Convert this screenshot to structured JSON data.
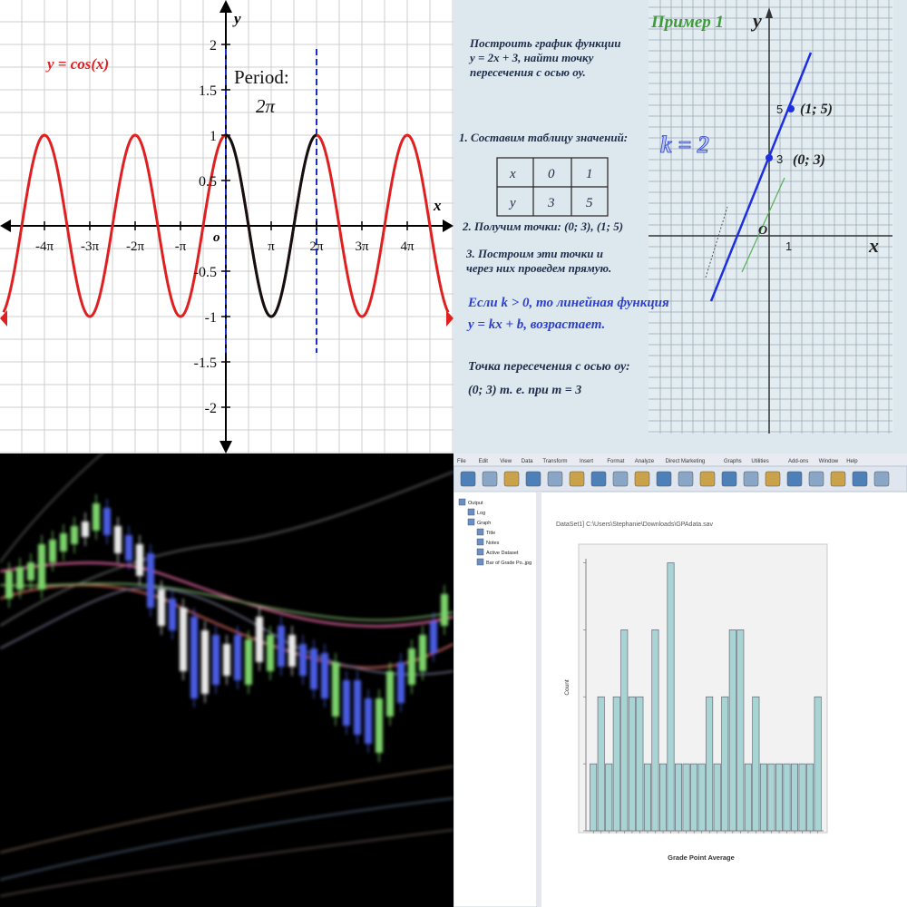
{
  "cosine_panel": {
    "function_label": "y = cos(x)",
    "period_label": "Period:",
    "period_value": "2π",
    "axis_x": "x",
    "axis_y": "y",
    "origin": "o",
    "colors": {
      "curve": "#e02020",
      "period_curve": "#111111",
      "dashed": "#1a2fbf"
    }
  },
  "linear_panel": {
    "title": "Пример 1",
    "task": [
      "Построить график функции",
      "y = 2x + 3, найти точку",
      "пересечения с осью оу."
    ],
    "step1": "1. Составим таблицу значений:",
    "table": {
      "rows": [
        [
          "x",
          "0",
          "1"
        ],
        [
          "y",
          "3",
          "5"
        ]
      ]
    },
    "step2": "2. Получим точки:   (0; 3),  (1; 5)",
    "step3": [
      "3. Построим эти точки и",
      "через них проведем прямую."
    ],
    "rule": [
      "Если  k > 0,  то линейная функция",
      "y = kx + b, возрастает."
    ],
    "answer_title": "Точка пересечения с осью оу:",
    "answer": "(0; 3) т. е. при m = 3",
    "k_label": "k = 2",
    "point_a": "(1; 5)",
    "point_b": "(0; 3)",
    "tick_5": "5",
    "tick_3": "3",
    "tick_1": "1",
    "axis_x": "x",
    "axis_y": "y",
    "origin": "O",
    "colors": {
      "line": "#1d2fe0",
      "grid": "#9aa9b4",
      "title": "#3f9a3a"
    }
  },
  "spss_panel": {
    "menu": [
      "File",
      "Edit",
      "View",
      "Data",
      "Transform",
      "Insert",
      "Format",
      "Analyze",
      "Direct Marketing",
      "Graphs",
      "Utilities",
      "Add-ons",
      "Window",
      "Help"
    ],
    "tree": [
      "Output",
      "Log",
      "Graph",
      "Title",
      "Notes",
      "Active Dataset",
      "Bar of Grade Po..jpg"
    ],
    "dataset_line": "DataSet1] C:\\Users\\Stephanie\\Downloads\\GPAdata.sav",
    "x_axis_title": "Grade Point Average",
    "y_axis_title": "Count"
  },
  "chart_data": [
    {
      "type": "line",
      "title": "y = cos(x)",
      "x_ticks": [
        "-4π",
        "-3π",
        "-2π",
        "-π",
        "π",
        "2π",
        "3π",
        "4π"
      ],
      "y_ticks": [
        "-2",
        "-1.5",
        "-1",
        "-0.5",
        "0.5",
        "1",
        "1.5",
        "2"
      ],
      "xlim": [
        -15.4,
        15.4
      ],
      "ylim": [
        -2.5,
        2.5
      ],
      "series": [
        {
          "name": "y = cos(x)",
          "function": "cos(x)",
          "domain": [
            -15.4,
            15.4
          ]
        },
        {
          "function": "cos(x)",
          "domain": [
            0,
            6.2832
          ]
        }
      ],
      "period_markers_x": [
        0,
        6.2832
      ],
      "grid": true
    },
    {
      "type": "line",
      "title": "Пример 1",
      "series": [
        {
          "function": "2x + 3"
        }
      ],
      "points": [
        {
          "x": 0,
          "y": 3,
          "label": "(0; 3)"
        },
        {
          "x": 1,
          "y": 5,
          "label": "(1; 5)"
        }
      ],
      "grid": true
    },
    {
      "type": "bar",
      "xlabel": "Grade Point Average",
      "ylabel": "Count",
      "ylim": [
        0,
        4
      ],
      "values": [
        1,
        2,
        1,
        2,
        3,
        2,
        2,
        1,
        3,
        1,
        4,
        1,
        1,
        1,
        1,
        2,
        1,
        2,
        3,
        3,
        1,
        2,
        1,
        1,
        1,
        1,
        1,
        1,
        1,
        2
      ]
    }
  ]
}
